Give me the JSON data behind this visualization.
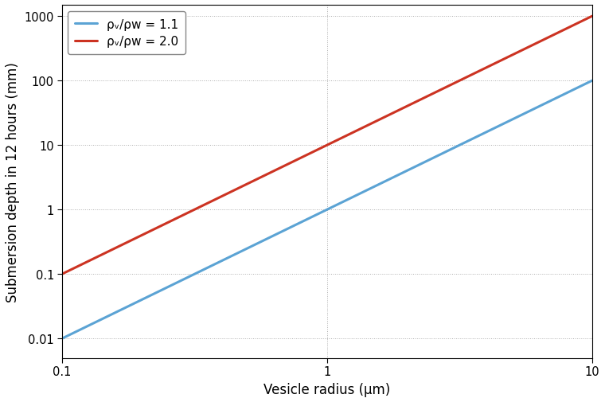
{
  "xlabel": "Vesicle radius (μm)",
  "ylabel": "Submersion depth in 12 hours (mm)",
  "xlim": [
    0.1,
    10
  ],
  "ylim": [
    0.005,
    1500
  ],
  "line1_label": "ρᵥ/ρw = 1.1",
  "line2_label": "ρᵥ/ρw = 2.0",
  "line1_color": "#5ba3d4",
  "line2_color": "#cc3322",
  "line1_A": 0.01,
  "line1_pow": 2.0,
  "line2_A": 0.1,
  "line2_pow": 2.0,
  "background_color": "#ffffff",
  "grid_color": "#999999",
  "linewidth": 2.2,
  "legend_fontsize": 11,
  "axis_label_fontsize": 12,
  "tick_fontsize": 10.5
}
